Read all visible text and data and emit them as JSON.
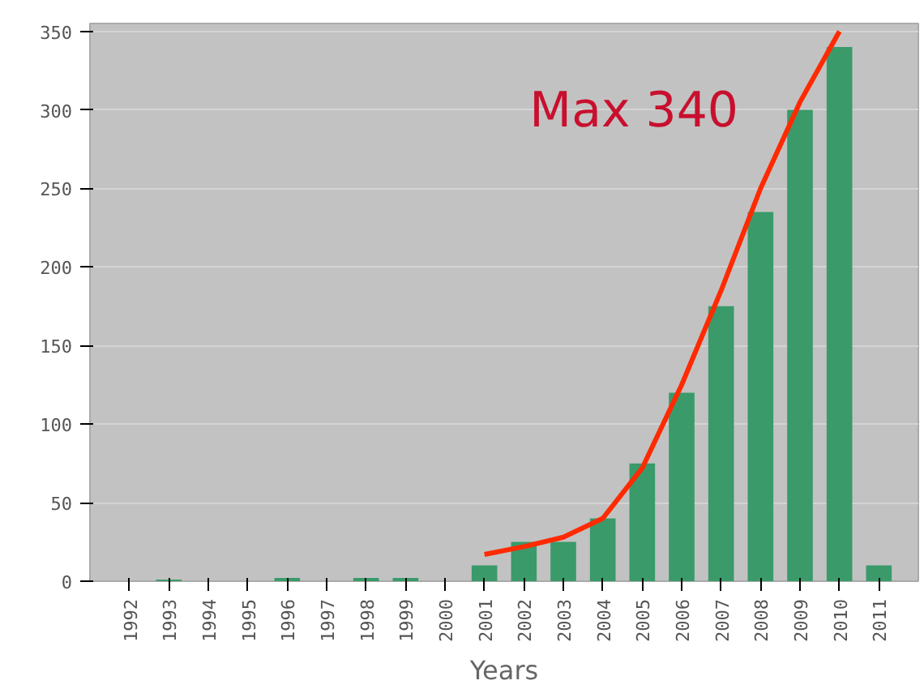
{
  "chart_data": {
    "type": "bar",
    "xlabel": "Years",
    "categories": [
      "1992",
      "1993",
      "1994",
      "1995",
      "1996",
      "1997",
      "1998",
      "1999",
      "2000",
      "2001",
      "2002",
      "2003",
      "2004",
      "2005",
      "2006",
      "2007",
      "2008",
      "2009",
      "2010",
      "2011"
    ],
    "series": [
      {
        "color": "#3a9a6a",
        "values": [
          0,
          1,
          0,
          0,
          2,
          0,
          2,
          2,
          0,
          10,
          25,
          25,
          40,
          75,
          120,
          175,
          235,
          300,
          340,
          10
        ]
      },
      {
        "type": "line",
        "color": "#ff2a00",
        "values": [
          null,
          null,
          null,
          null,
          null,
          null,
          null,
          null,
          null,
          17,
          22,
          28,
          40,
          72,
          125,
          185,
          250,
          305,
          350,
          null
        ]
      }
    ],
    "ylim": [
      0,
      355
    ],
    "yticks": [
      0,
      50,
      100,
      150,
      200,
      250,
      300,
      350
    ],
    "grid": "y",
    "annotations": [
      "Max 340"
    ]
  }
}
